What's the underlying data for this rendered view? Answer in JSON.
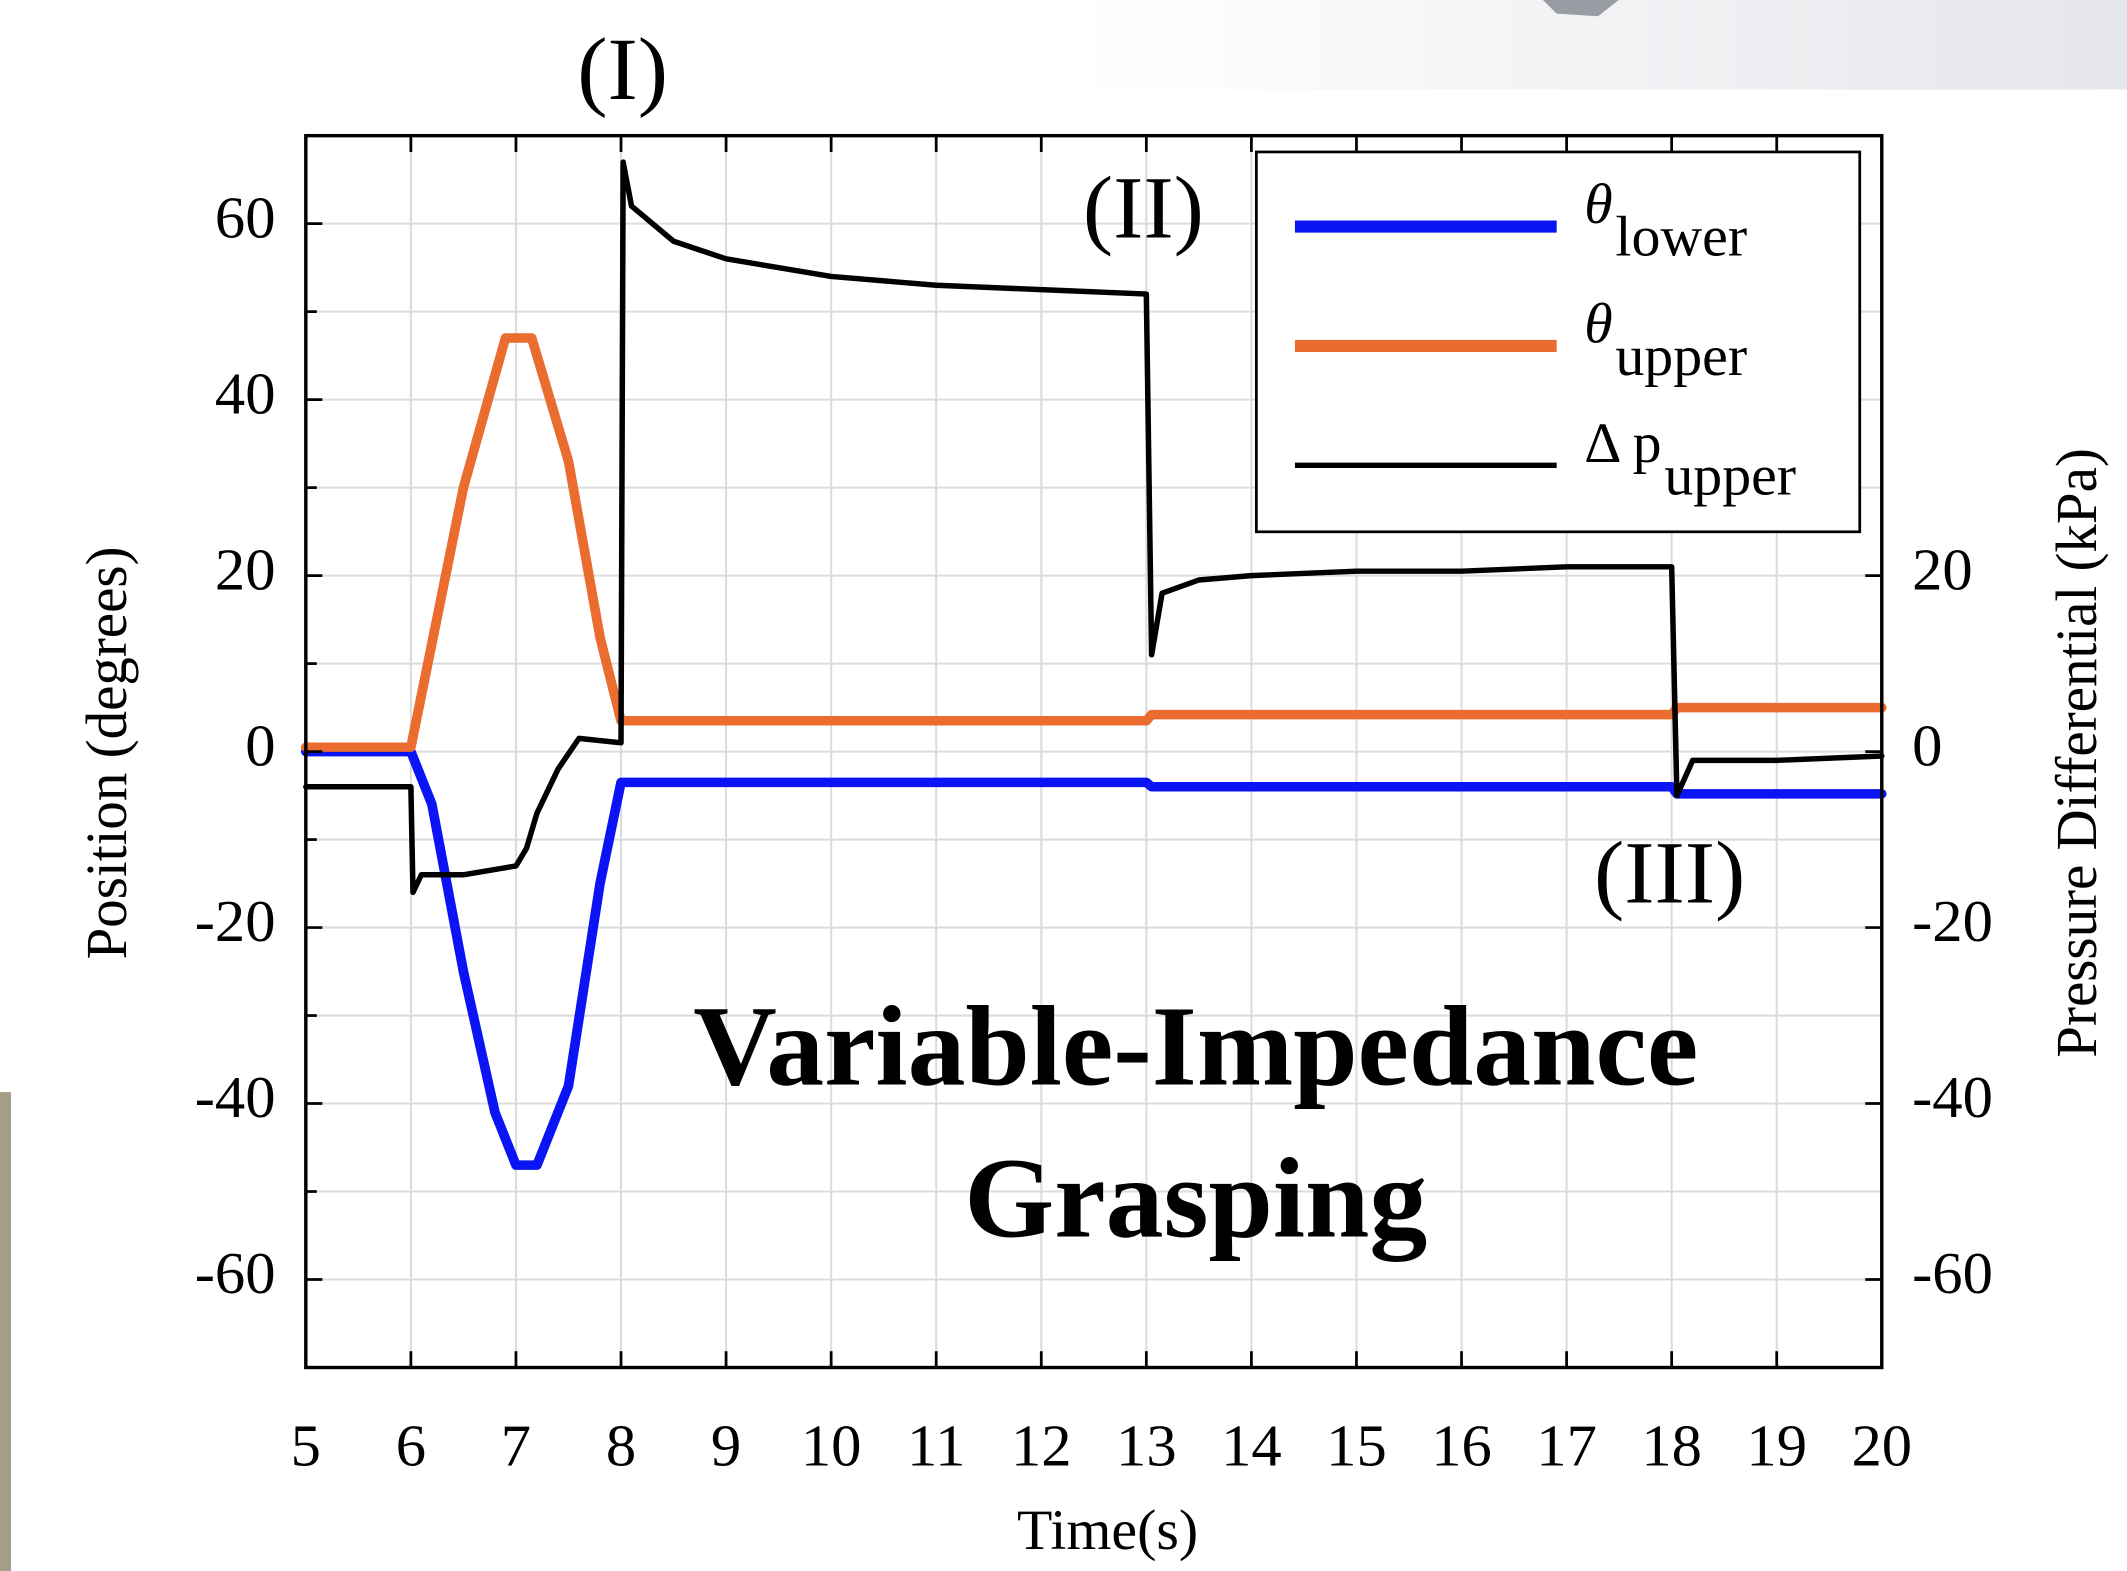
{
  "chart_data": {
    "type": "line",
    "x_label": "Time(s)",
    "y_label": "Position (degrees)",
    "y2_label": "Pressure Differential (kPa)",
    "xlim": [
      5,
      20
    ],
    "xticks": [
      5,
      6,
      7,
      8,
      9,
      10,
      11,
      12,
      13,
      14,
      15,
      16,
      17,
      18,
      19,
      20
    ],
    "ylim": [
      -70,
      70
    ],
    "yticks": [
      -60,
      -40,
      -20,
      0,
      20,
      40,
      60
    ],
    "yminorticks": [
      -70,
      -50,
      -30,
      -10,
      10,
      30,
      50,
      70
    ],
    "y2lim": [
      -70,
      70
    ],
    "y2ticks": [
      -60,
      -40,
      -20,
      0,
      20
    ],
    "grid": true,
    "legend": "upper right",
    "annotations": [
      "(I)",
      "(II)",
      "(III)"
    ],
    "overlay_text": [
      "Variable-Impedance",
      "Grasping"
    ],
    "series": [
      {
        "name": "θ",
        "subscript": "lower",
        "color": "#0a14f5",
        "x": [
          5,
          6,
          6.2,
          6.5,
          6.8,
          7,
          7.2,
          7.5,
          7.8,
          8,
          13,
          13.05,
          18,
          18.05,
          20
        ],
        "values": [
          0,
          0,
          -6,
          -25,
          -41,
          -47,
          -47,
          -38,
          -15,
          -3.5,
          -3.5,
          -4,
          -4,
          -4.8,
          -4.8
        ]
      },
      {
        "name": "θ",
        "subscript": "upper",
        "color": "#ea6c2f",
        "x": [
          5,
          6,
          6.5,
          6.9,
          7.15,
          7.5,
          7.8,
          8,
          13,
          13.05,
          18,
          18.05,
          20
        ],
        "values": [
          0.5,
          0.5,
          30,
          47,
          47,
          33,
          13,
          3.5,
          3.5,
          4.2,
          4.2,
          5,
          5
        ]
      },
      {
        "name": "Δ p",
        "subscript": "upper",
        "color": "#000000",
        "axis": "y2",
        "x": [
          5,
          6,
          6.02,
          6.1,
          6.5,
          7,
          7.1,
          7.2,
          7.4,
          7.6,
          8,
          8.02,
          8.1,
          8.5,
          9,
          10,
          11,
          12,
          13,
          13.05,
          13.15,
          13.5,
          14,
          15,
          16,
          17,
          18,
          18.05,
          18.2,
          19,
          20
        ],
        "values": [
          -4,
          -4,
          -16,
          -14,
          -14,
          -13,
          -11,
          -7,
          -2,
          1.5,
          1,
          67,
          62,
          58,
          56,
          54,
          53,
          52.5,
          52,
          11,
          18,
          19.5,
          20,
          20.5,
          20.5,
          21,
          21,
          -5,
          -1,
          -1,
          -0.5
        ]
      }
    ]
  }
}
